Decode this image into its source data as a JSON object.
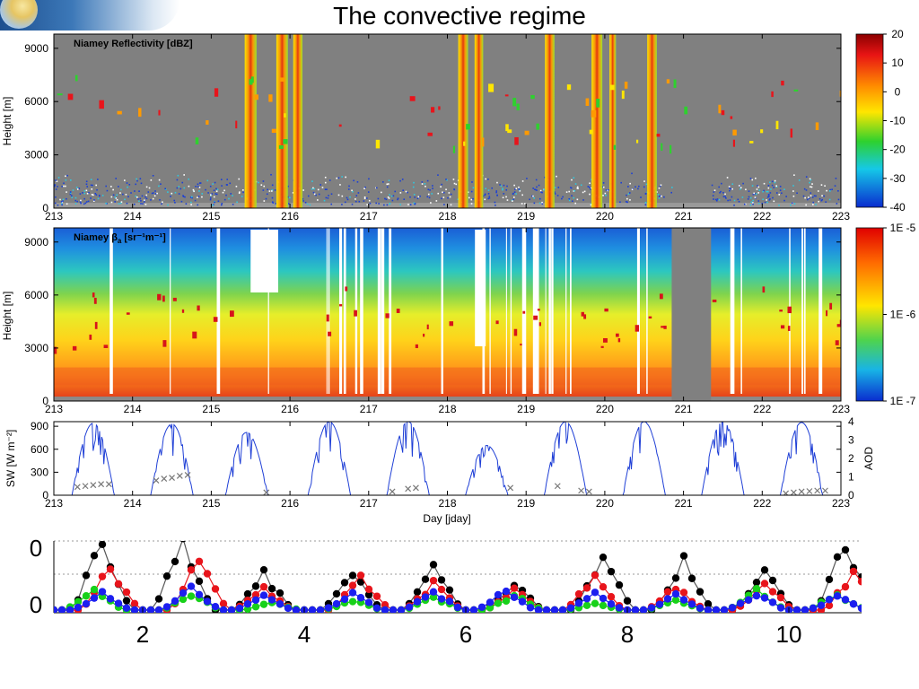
{
  "title": "The convective regime",
  "chart_data": [
    {
      "type": "heatmap",
      "id": "reflectivity",
      "title": "Niamey Reflectivity [dBZ]",
      "ylabel": "Height [m]",
      "xlim": [
        213,
        223
      ],
      "ylim": [
        0,
        9800
      ],
      "xticks": [
        "213",
        "214",
        "215",
        "216",
        "217",
        "218",
        "219",
        "220",
        "221",
        "222",
        "223"
      ],
      "yticks": [
        "0",
        "3000",
        "6000",
        "9000"
      ],
      "colorbar": {
        "ticks": [
          "20",
          "10",
          "0",
          "-10",
          "-20",
          "-30",
          "-40"
        ],
        "range": [
          -40,
          20
        ]
      },
      "background_color": "#808080",
      "convective_towers_day": [
        215.5,
        215.9,
        216.1,
        218.2,
        218.4,
        219.3,
        219.9,
        220.1,
        220.6
      ],
      "boundary_layer_top_m": 1500
    },
    {
      "type": "heatmap",
      "id": "backscatter",
      "title": "Niamey β",
      "title_sub": "a",
      "title_units": "[sr⁻¹m⁻¹]",
      "ylabel": "Height [m]",
      "xlim": [
        213,
        223
      ],
      "ylim": [
        0,
        9800
      ],
      "xticks": [
        "213",
        "214",
        "215",
        "216",
        "217",
        "218",
        "219",
        "220",
        "221",
        "222",
        "223"
      ],
      "yticks": [
        "0",
        "3000",
        "6000",
        "9000"
      ],
      "colorbar": {
        "ticks": [
          "1E -5",
          "1E -6",
          "1E -7"
        ]
      },
      "no_data_interval_day": [
        220.85,
        221.35
      ]
    },
    {
      "type": "line",
      "id": "sw-aod",
      "xlabel": "Day [jday]",
      "ylabel": "SW [W m⁻²]",
      "y2label": "AOD",
      "xlim": [
        213,
        223
      ],
      "ylim": [
        0,
        960
      ],
      "y2lim": [
        0,
        4
      ],
      "xticks": [
        "213",
        "214",
        "215",
        "216",
        "217",
        "218",
        "219",
        "220",
        "221",
        "222",
        "223"
      ],
      "yticks": [
        "0",
        "300",
        "600",
        "900"
      ],
      "y2ticks": [
        "0",
        "1",
        "2",
        "3",
        "4"
      ],
      "series": [
        {
          "color": "#1f3fd6",
          "peaks": [
            {
              "day": 213.5,
              "max": 940
            },
            {
              "day": 214.5,
              "max": 930
            },
            {
              "day": 215.45,
              "max": 820
            },
            {
              "day": 216.5,
              "max": 960
            },
            {
              "day": 217.5,
              "max": 960
            },
            {
              "day": 218.5,
              "max": 650
            },
            {
              "day": 219.5,
              "max": 960
            },
            {
              "day": 220.5,
              "max": 960
            },
            {
              "day": 221.5,
              "max": 960
            },
            {
              "day": 222.5,
              "max": 950
            }
          ]
        },
        {
          "color": "#777777",
          "marker": "x",
          "axis": "y2",
          "points": [
            [
              213.3,
              0.45
            ],
            [
              213.4,
              0.5
            ],
            [
              213.5,
              0.55
            ],
            [
              213.6,
              0.6
            ],
            [
              213.7,
              0.6
            ],
            [
              214.3,
              0.8
            ],
            [
              214.4,
              0.9
            ],
            [
              214.5,
              0.95
            ],
            [
              214.6,
              1.05
            ],
            [
              214.7,
              1.1
            ],
            [
              215.7,
              0.15
            ],
            [
              217.3,
              0.2
            ],
            [
              217.5,
              0.35
            ],
            [
              217.6,
              0.4
            ],
            [
              218.8,
              0.4
            ],
            [
              219.4,
              0.5
            ],
            [
              219.7,
              0.25
            ],
            [
              219.8,
              0.2
            ],
            [
              222.3,
              0.1
            ],
            [
              222.4,
              0.15
            ],
            [
              222.5,
              0.2
            ],
            [
              222.6,
              0.22
            ],
            [
              222.7,
              0.25
            ],
            [
              222.8,
              0.25
            ]
          ]
        }
      ]
    },
    {
      "type": "line",
      "id": "diurnal-cycles",
      "xticks": [
        "2",
        "4",
        "6",
        "8",
        "10"
      ],
      "xlim": [
        0.9,
        10.9
      ],
      "yticks_visible": [
        "0",
        "0"
      ],
      "series": [
        {
          "color": "#000000",
          "peaks": [
            {
              "day": 1.5,
              "max": 1.1
            },
            {
              "day": 2.5,
              "max": 1.1
            },
            {
              "day": 3.5,
              "max": 0.55
            },
            {
              "day": 4.6,
              "max": 0.6
            },
            {
              "day": 5.6,
              "max": 0.7
            },
            {
              "day": 6.6,
              "max": 0.4
            },
            {
              "day": 7.7,
              "max": 0.9
            },
            {
              "day": 8.7,
              "max": 0.75
            },
            {
              "day": 9.7,
              "max": 0.6
            },
            {
              "day": 10.7,
              "max": 1.05
            }
          ]
        },
        {
          "color": "#e8141b",
          "peaks": [
            {
              "day": 1.6,
              "max": 0.65
            },
            {
              "day": 2.7,
              "max": 0.8
            },
            {
              "day": 3.5,
              "max": 0.35
            },
            {
              "day": 4.7,
              "max": 0.5
            },
            {
              "day": 5.6,
              "max": 0.4
            },
            {
              "day": 6.6,
              "max": 0.3
            },
            {
              "day": 7.6,
              "max": 0.55
            },
            {
              "day": 8.6,
              "max": 0.35
            },
            {
              "day": 9.7,
              "max": 0.4
            },
            {
              "day": 10.8,
              "max": 0.55
            }
          ]
        },
        {
          "color": "#18d11a",
          "peaks": [
            {
              "day": 1.4,
              "max": 0.3
            },
            {
              "day": 2.6,
              "max": 0.25
            },
            {
              "day": 3.6,
              "max": 0.12
            },
            {
              "day": 4.6,
              "max": 0.15
            },
            {
              "day": 5.6,
              "max": 0.2
            },
            {
              "day": 6.6,
              "max": 0.22
            },
            {
              "day": 7.6,
              "max": 0.1
            },
            {
              "day": 8.6,
              "max": 0.15
            },
            {
              "day": 9.6,
              "max": 0.3
            },
            {
              "day": 10.6,
              "max": 0.25
            }
          ]
        },
        {
          "color": "#1c1ff0",
          "peaks": [
            {
              "day": 1.5,
              "max": 0.25
            },
            {
              "day": 2.6,
              "max": 0.35
            },
            {
              "day": 3.5,
              "max": 0.2
            },
            {
              "day": 4.6,
              "max": 0.25
            },
            {
              "day": 5.6,
              "max": 0.28
            },
            {
              "day": 6.5,
              "max": 0.3
            },
            {
              "day": 7.6,
              "max": 0.25
            },
            {
              "day": 8.6,
              "max": 0.22
            },
            {
              "day": 9.6,
              "max": 0.25
            },
            {
              "day": 10.6,
              "max": 0.2
            }
          ]
        }
      ]
    }
  ]
}
